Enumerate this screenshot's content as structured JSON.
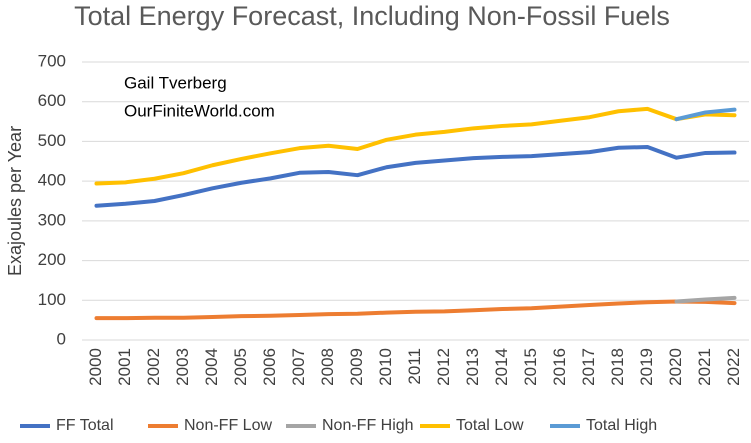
{
  "chart_data": {
    "type": "line",
    "title": "Total Energy Forecast, Including Non-Fossil Fuels",
    "annotations": [
      "Gail Tverberg",
      "OurFiniteWorld.com"
    ],
    "y_label": "Exajoules per Year",
    "categories": [
      "2000",
      "2001",
      "2002",
      "2003",
      "2004",
      "2005",
      "2006",
      "2007",
      "2008",
      "2009",
      "2010",
      "2011",
      "2012",
      "2013",
      "2014",
      "2015",
      "2016",
      "2017",
      "2018",
      "2019",
      "2020",
      "2021",
      "2022"
    ],
    "series": [
      {
        "name": "FF Total",
        "color": "#4472c4",
        "values": [
          338,
          343,
          350,
          365,
          382,
          396,
          407,
          421,
          423,
          415,
          435,
          446,
          452,
          458,
          461,
          463,
          468,
          473,
          484,
          486,
          459,
          471,
          472
        ]
      },
      {
        "name": "Non-FF Low",
        "color": "#ed7d31",
        "values": [
          55,
          55,
          56,
          56,
          58,
          60,
          61,
          63,
          65,
          66,
          69,
          71,
          72,
          75,
          78,
          80,
          84,
          88,
          92,
          95,
          97,
          96,
          93
        ]
      },
      {
        "name": "Non-FF High",
        "color": "#a5a5a5",
        "values": [
          null,
          null,
          null,
          null,
          null,
          null,
          null,
          null,
          null,
          null,
          null,
          null,
          null,
          null,
          null,
          null,
          null,
          null,
          null,
          null,
          97,
          102,
          106
        ]
      },
      {
        "name": "Total Low",
        "color": "#ffc000",
        "values": [
          394,
          397,
          406,
          420,
          440,
          456,
          470,
          483,
          489,
          481,
          504,
          517,
          524,
          533,
          539,
          543,
          552,
          561,
          576,
          582,
          556,
          568,
          566
        ]
      },
      {
        "name": "Total High",
        "color": "#5b9bd5",
        "values": [
          null,
          null,
          null,
          null,
          null,
          null,
          null,
          null,
          null,
          null,
          null,
          null,
          null,
          null,
          null,
          null,
          null,
          null,
          null,
          null,
          556,
          573,
          580
        ]
      }
    ],
    "ylim": [
      0,
      700
    ],
    "yticks": [
      0,
      100,
      200,
      300,
      400,
      500,
      600,
      700
    ],
    "grid": true,
    "legend": "bottom"
  }
}
